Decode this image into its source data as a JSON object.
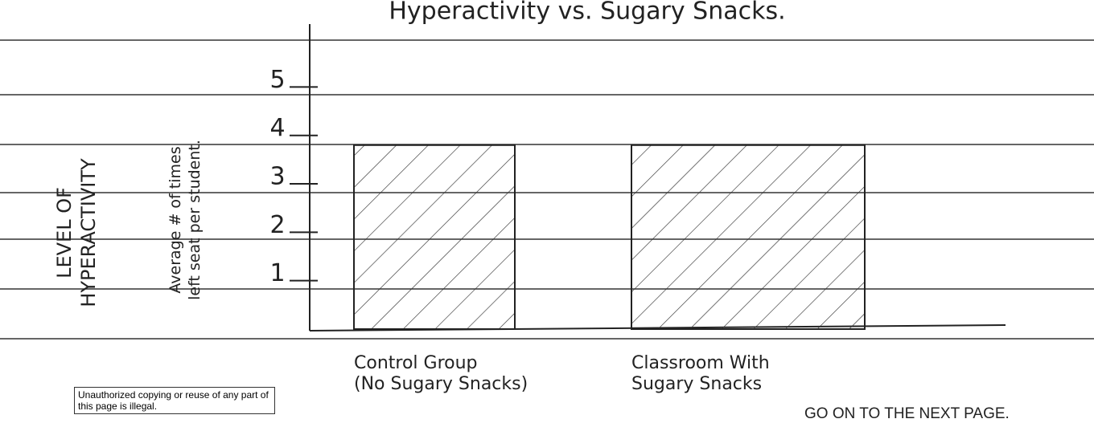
{
  "chart_data": {
    "type": "bar",
    "title": "Hyperactivity vs. Sugary Snacks.",
    "y_label": "LEVEL OF\nHYPERACTIVITY",
    "y_sublabel": "Average # of times\nleft seat per student.",
    "categories": [
      "Control Group\n(No Sugary Snacks)",
      "Classroom With\nSugary Snacks"
    ],
    "values": [
      3.8,
      3.8
    ],
    "ylim": [
      0,
      6.3
    ],
    "yticks": [
      1,
      2,
      3,
      4,
      5
    ]
  },
  "footer": {
    "notice": "Unauthorized copying or reuse of any part of this page is illegal.",
    "next": "GO ON TO THE NEXT PAGE."
  }
}
